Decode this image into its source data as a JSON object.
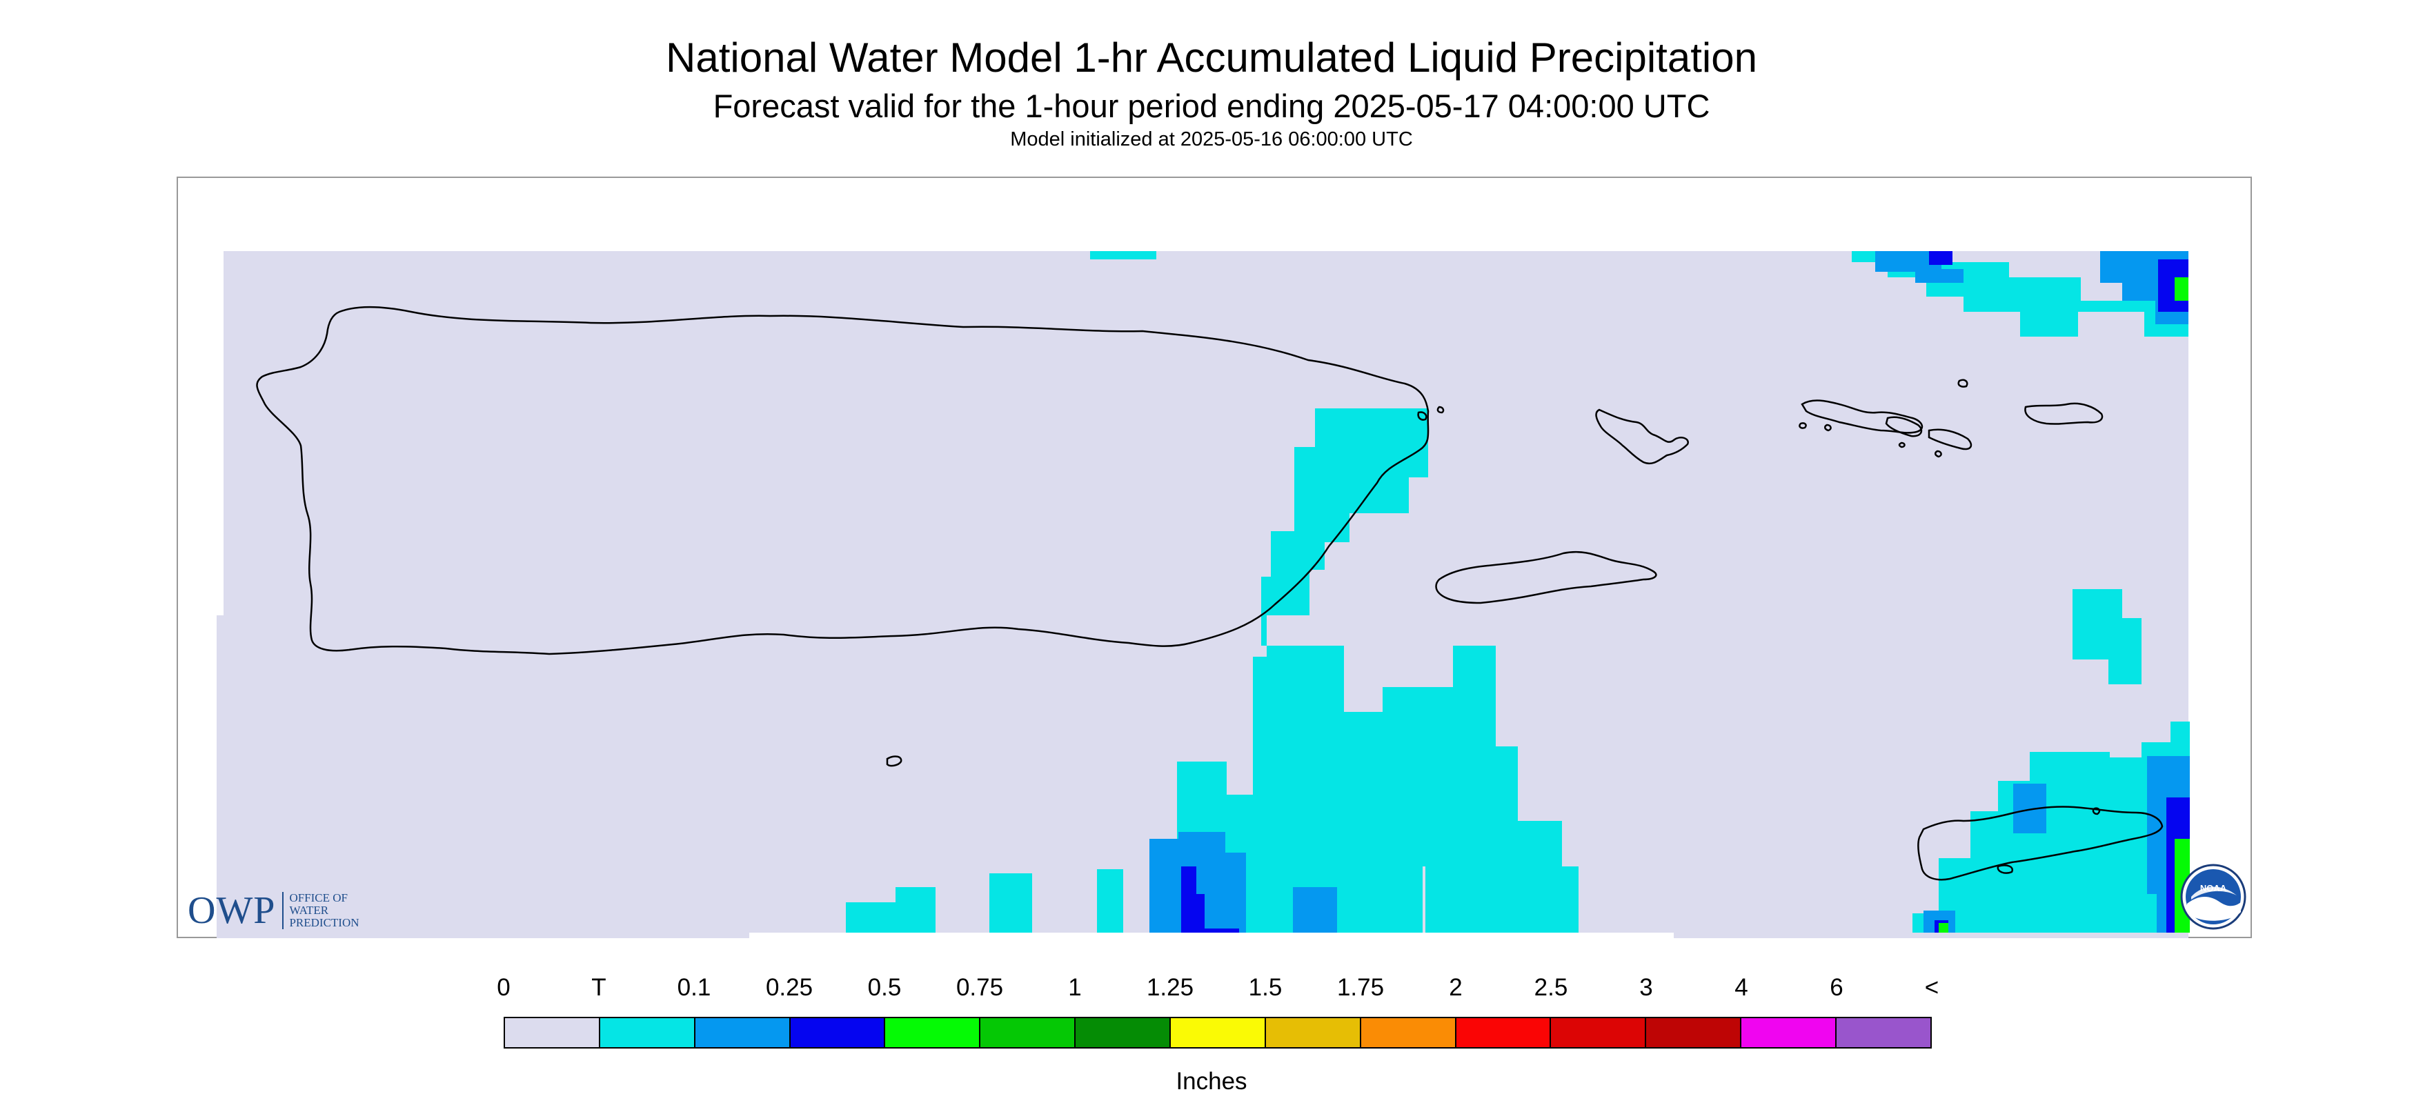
{
  "title": "National Water Model 1-hr Accumulated Liquid Precipitation",
  "subtitle": "Forecast valid for the 1-hour period ending 2025-05-17 04:00:00 UTC",
  "init_line": "Model initialized at 2025-05-16 06:00:00 UTC",
  "legend": {
    "labels": [
      "0",
      "T",
      "0.1",
      "0.25",
      "0.5",
      "0.75",
      "1",
      "1.25",
      "1.5",
      "1.75",
      "2",
      "2.5",
      "3",
      "4",
      "6",
      "<"
    ],
    "colors": [
      "#dcdcee",
      "#05e5e5",
      "#0598f0",
      "#0505f0",
      "#05fa05",
      "#05c805",
      "#058c05",
      "#fafa05",
      "#e6be05",
      "#fa8c05",
      "#fa0505",
      "#dc0505",
      "#be0505",
      "#f005f0",
      "#9955cc"
    ],
    "units": "Inches"
  },
  "map": {
    "background_color": "#dcdcee",
    "outline_color": "#000000",
    "precip_categories_present": [
      "T",
      "0.1",
      "0.25",
      "0.5"
    ]
  },
  "logos": {
    "owp": {
      "mark": "OWP",
      "line1": "OFFICE OF",
      "line2": "WATER",
      "line3": "PREDICTION"
    },
    "noaa": {
      "text": "NOAA"
    }
  }
}
